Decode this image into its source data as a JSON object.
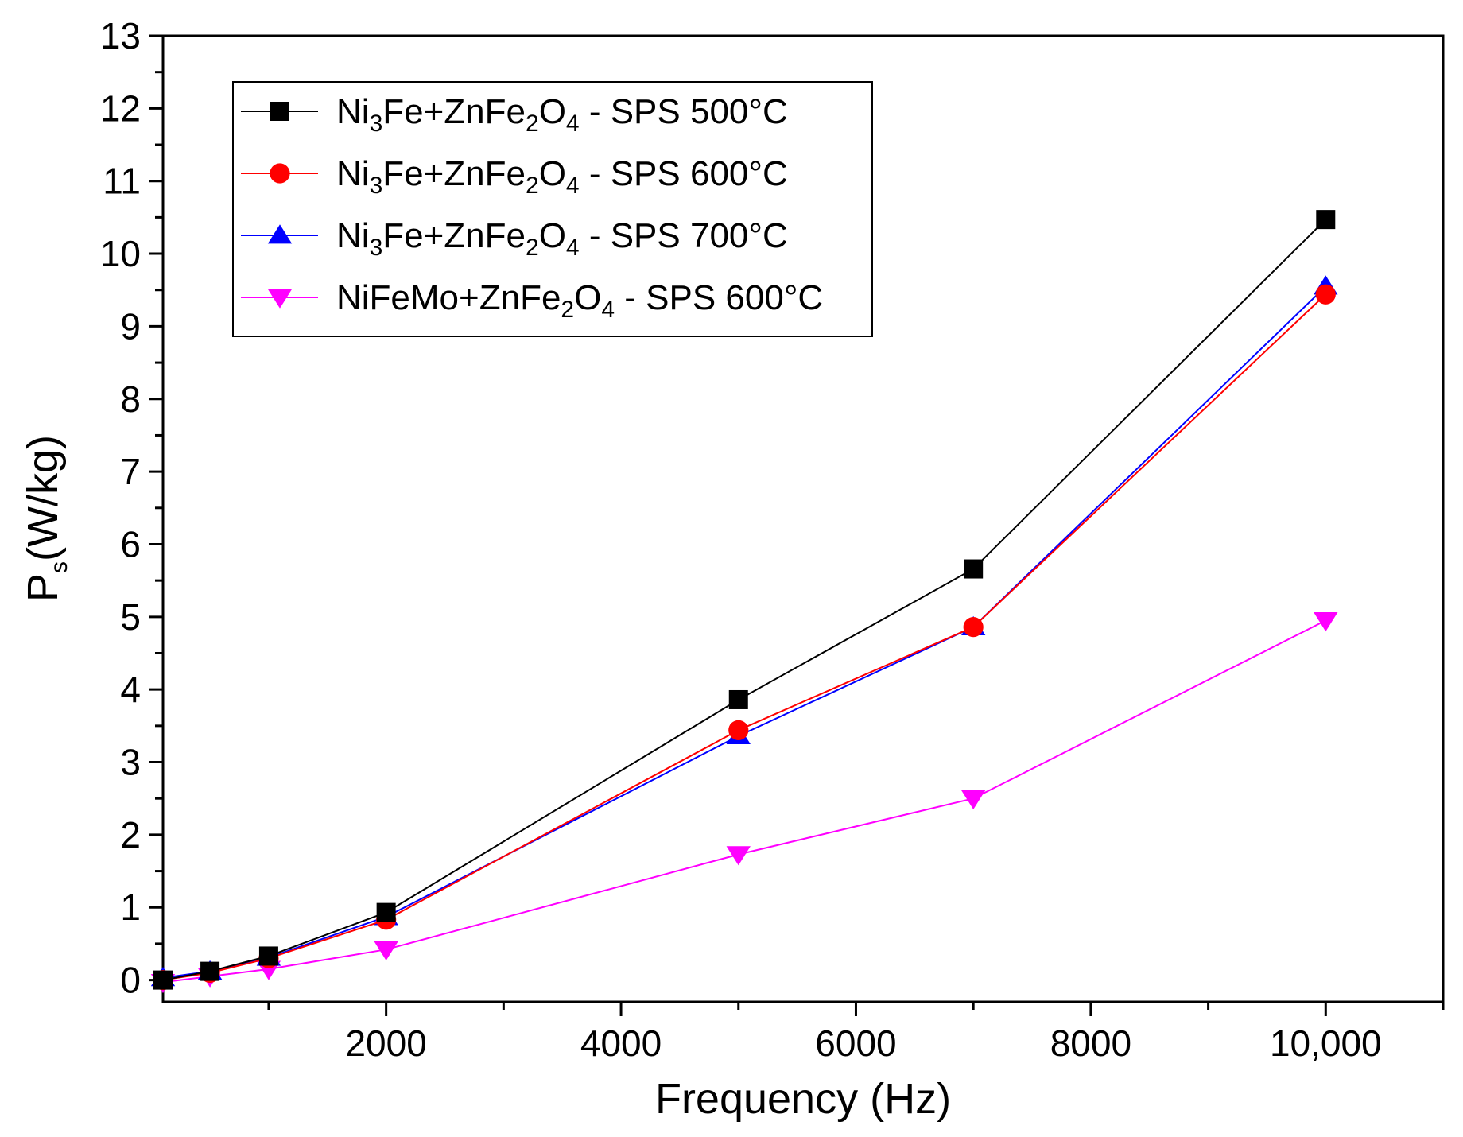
{
  "chart_data": {
    "type": "line",
    "title": "",
    "xlabel": "Frequency (Hz)",
    "ylabel_main": "P",
    "ylabel_sub": "s",
    "ylabel_unit": "(W/kg)",
    "xlim": [
      100,
      11000
    ],
    "ylim": [
      -0.3,
      13
    ],
    "xticks": [
      2000,
      4000,
      6000,
      8000,
      10000
    ],
    "xtick_labels": [
      "2000",
      "4000",
      "6000",
      "8000",
      "10,000"
    ],
    "yticks": [
      0,
      1,
      2,
      3,
      4,
      5,
      6,
      7,
      8,
      9,
      10,
      11,
      12,
      13
    ],
    "ytick_labels": [
      "0",
      "1",
      "2",
      "3",
      "4",
      "5",
      "6",
      "7",
      "8",
      "9",
      "10",
      "11",
      "12",
      "13"
    ],
    "legend_position": "top-left",
    "series": [
      {
        "name": "Ni3Fe+ZnFe2O4 - SPS 500°C",
        "label_parts": [
          [
            "Ni",
            ""
          ],
          [
            "3",
            "sub"
          ],
          [
            "Fe+ZnFe",
            ""
          ],
          [
            "2",
            "sub"
          ],
          [
            "O",
            ""
          ],
          [
            "4",
            "sub"
          ],
          [
            " - SPS 500°C",
            ""
          ]
        ],
        "color": "#000000",
        "marker": "square",
        "x": [
          100,
          500,
          1000,
          2000,
          5000,
          7000,
          10000
        ],
        "y": [
          0.0,
          0.12,
          0.33,
          0.93,
          3.86,
          5.66,
          10.47
        ]
      },
      {
        "name": "Ni3Fe+ZnFe2O4 - SPS 600°C",
        "label_parts": [
          [
            "Ni",
            ""
          ],
          [
            "3",
            "sub"
          ],
          [
            "Fe+ZnFe",
            ""
          ],
          [
            "2",
            "sub"
          ],
          [
            "O",
            ""
          ],
          [
            "4",
            "sub"
          ],
          [
            " - SPS 600°C",
            ""
          ]
        ],
        "color": "#ff0000",
        "marker": "circle",
        "x": [
          100,
          500,
          1000,
          2000,
          5000,
          7000,
          10000
        ],
        "y": [
          0.0,
          0.1,
          0.3,
          0.83,
          3.44,
          4.86,
          9.44
        ]
      },
      {
        "name": "Ni3Fe+ZnFe2O4 - SPS 700°C",
        "label_parts": [
          [
            "Ni",
            ""
          ],
          [
            "3",
            "sub"
          ],
          [
            "Fe+ZnFe",
            ""
          ],
          [
            "2",
            "sub"
          ],
          [
            "O",
            ""
          ],
          [
            "4",
            "sub"
          ],
          [
            " - SPS 700°C",
            ""
          ]
        ],
        "color": "#0000ff",
        "marker": "triangle-up",
        "x": [
          100,
          500,
          1000,
          2000,
          5000,
          7000,
          10000
        ],
        "y": [
          0.03,
          0.12,
          0.31,
          0.87,
          3.36,
          4.86,
          9.55
        ]
      },
      {
        "name": "NiFeMo+ZnFe2O4 - SPS 600°C",
        "label_parts": [
          [
            "NiFeMo+ZnFe",
            ""
          ],
          [
            "2",
            "sub"
          ],
          [
            "O",
            ""
          ],
          [
            "4",
            "sub"
          ],
          [
            " - SPS 600°C",
            ""
          ]
        ],
        "color": "#ff00ff",
        "marker": "triangle-down",
        "x": [
          100,
          500,
          1000,
          2000,
          5000,
          7000,
          10000
        ],
        "y": [
          -0.03,
          0.05,
          0.15,
          0.42,
          1.73,
          2.5,
          4.95
        ]
      }
    ]
  }
}
